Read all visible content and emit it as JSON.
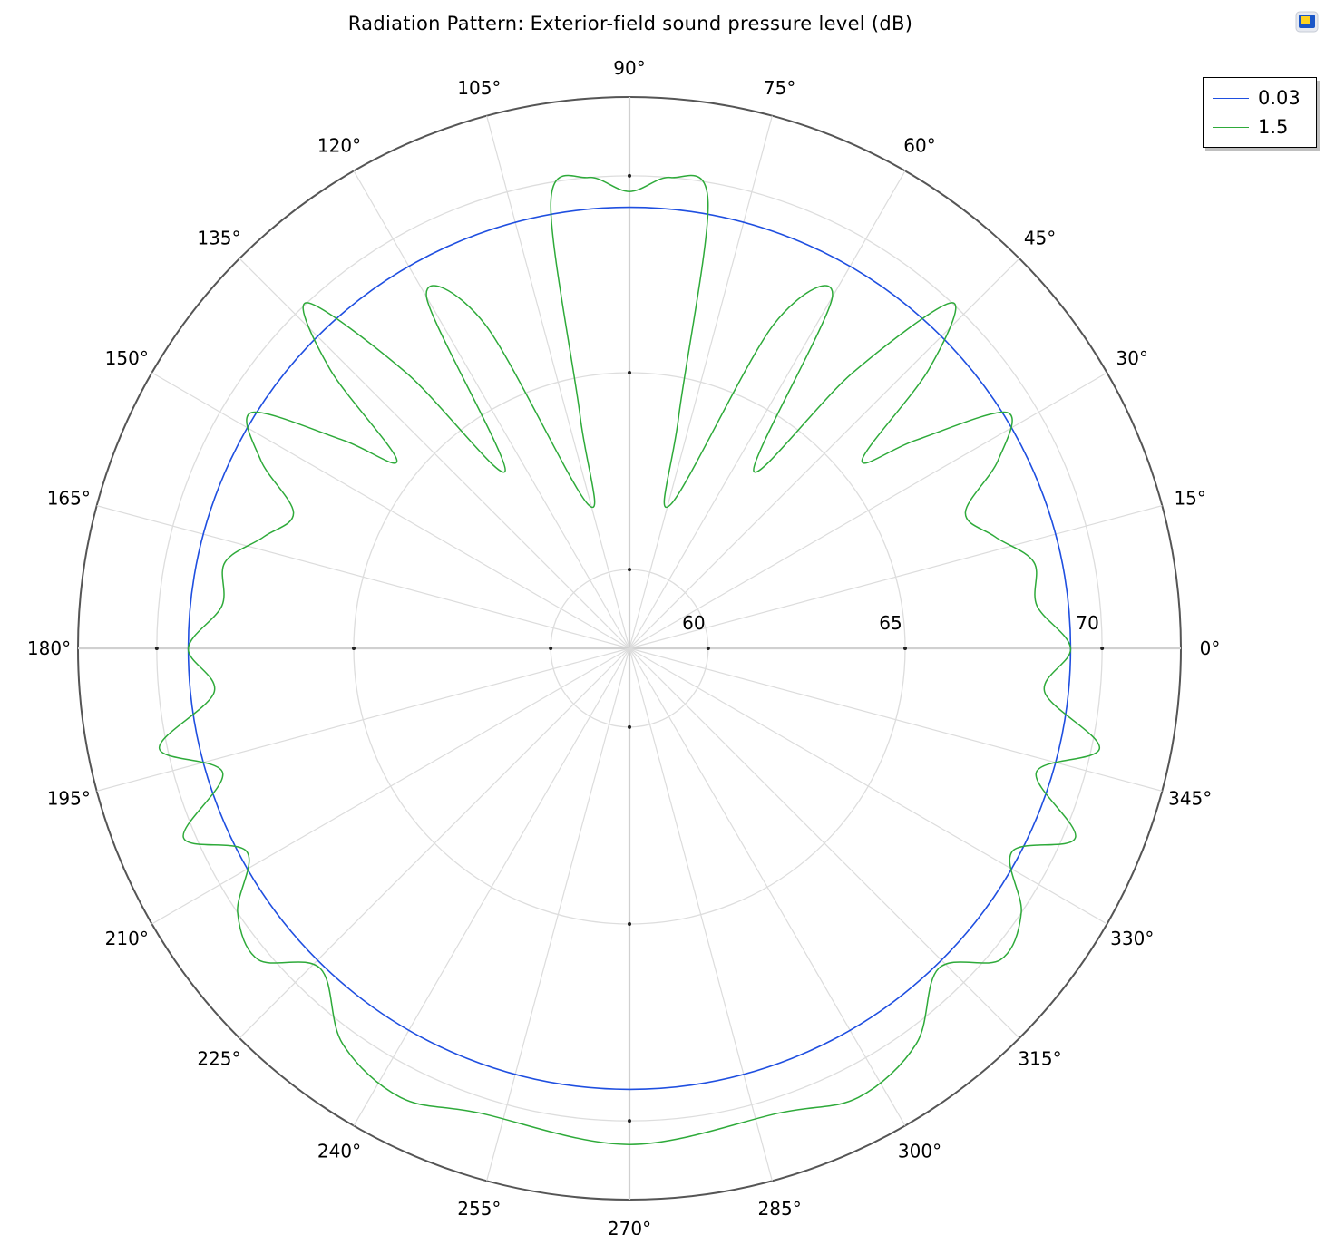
{
  "chart_data": {
    "type": "polar-line",
    "title": "Radiation Pattern: Exterior-field sound pressure level (dB)",
    "radial_axis": {
      "min": 58,
      "max": 72,
      "ticks": [
        60,
        65,
        70
      ]
    },
    "angle_ticks": [
      "0°",
      "15°",
      "30°",
      "45°",
      "60°",
      "75°",
      "90°",
      "105°",
      "120°",
      "135°",
      "150°",
      "165°",
      "180°",
      "195°",
      "210°",
      "225°",
      "240°",
      "255°",
      "270°",
      "285°",
      "300°",
      "315°",
      "330°",
      "345°"
    ],
    "legend_position": "top-right",
    "grid": true,
    "series": [
      {
        "name": "0.03",
        "color": "#1f4fe0",
        "points": [
          [
            0,
            69.2
          ],
          [
            90,
            69.2
          ],
          [
            180,
            69.2
          ],
          [
            270,
            69.2
          ],
          [
            360,
            69.2
          ]
        ]
      },
      {
        "name": "1.5",
        "color": "#2eaa3a",
        "points": [
          [
            0,
            69.2
          ],
          [
            6,
            68.4
          ],
          [
            12,
            68.5
          ],
          [
            17,
            67.7
          ],
          [
            22,
            67.2
          ],
          [
            27,
            68.5
          ],
          [
            32,
            69.3
          ],
          [
            36,
            67.0
          ],
          [
            39,
            65.6
          ],
          [
            43,
            68.4
          ],
          [
            47,
            70.0
          ],
          [
            51,
            67.0
          ],
          [
            55,
            63.5
          ],
          [
            60,
            68.3
          ],
          [
            66,
            67.0
          ],
          [
            74,
            61.8
          ],
          [
            78,
            64.0
          ],
          [
            80,
            69.5
          ],
          [
            85,
            70.0
          ],
          [
            90,
            69.6
          ],
          [
            95,
            70.0
          ],
          [
            100,
            69.5
          ],
          [
            102,
            64.0
          ],
          [
            106,
            61.8
          ],
          [
            114,
            67.0
          ],
          [
            120,
            68.3
          ],
          [
            125,
            63.5
          ],
          [
            129,
            67.0
          ],
          [
            133,
            70.0
          ],
          [
            137,
            68.4
          ],
          [
            141,
            65.6
          ],
          [
            144,
            67.0
          ],
          [
            148,
            69.3
          ],
          [
            153,
            68.5
          ],
          [
            158,
            67.2
          ],
          [
            163,
            67.7
          ],
          [
            168,
            68.5
          ],
          [
            174,
            68.4
          ],
          [
            180,
            69.2
          ],
          [
            186,
            68.6
          ],
          [
            192,
            70.2
          ],
          [
            197,
            68.8
          ],
          [
            203,
            70.3
          ],
          [
            208,
            69.0
          ],
          [
            214,
            70.0
          ],
          [
            220,
            70.3
          ],
          [
            226,
            69.3
          ],
          [
            234,
            70.4
          ],
          [
            243,
            70.8
          ],
          [
            252,
            70.4
          ],
          [
            270,
            70.6
          ],
          [
            288,
            70.4
          ],
          [
            297,
            70.8
          ],
          [
            306,
            70.4
          ],
          [
            314,
            69.3
          ],
          [
            320,
            70.3
          ],
          [
            326,
            70.0
          ],
          [
            332,
            69.0
          ],
          [
            337,
            70.3
          ],
          [
            343,
            68.8
          ],
          [
            348,
            70.2
          ],
          [
            354,
            68.6
          ],
          [
            360,
            69.2
          ]
        ]
      }
    ]
  },
  "ui": {
    "corner_icon": "window-restore-icon"
  }
}
